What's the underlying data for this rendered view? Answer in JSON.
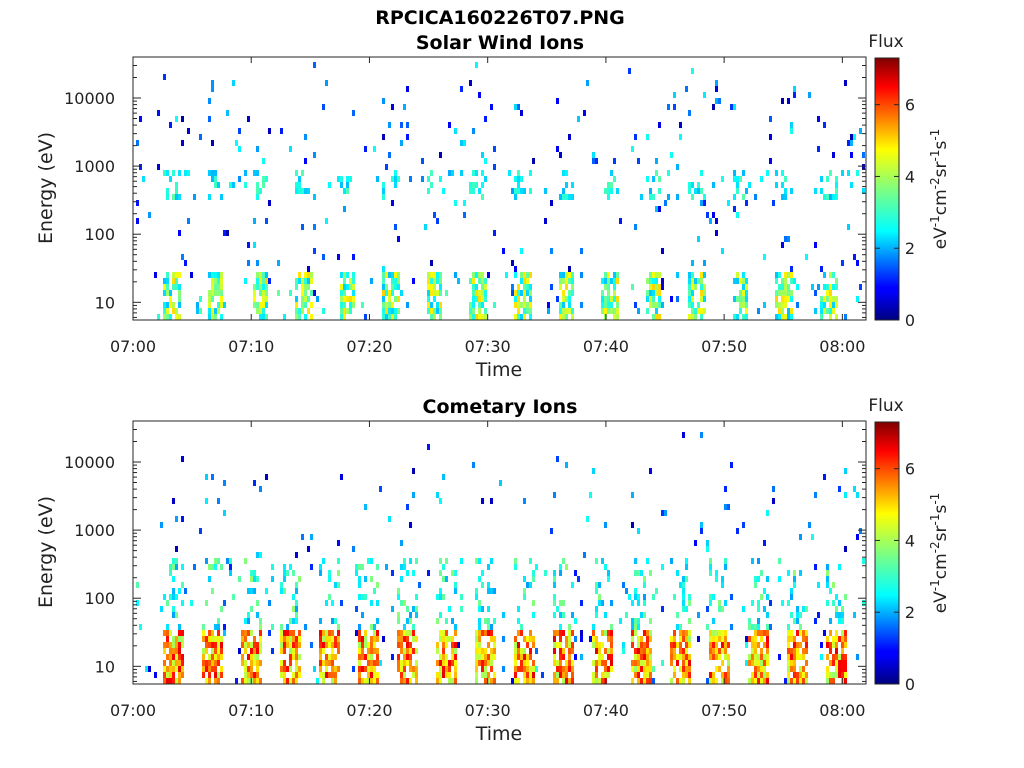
{
  "figure_title": "RPCICA160226T07.PNG",
  "chart_data": [
    {
      "type": "heatmap",
      "title": "Solar Wind Ions",
      "xlabel": "Time",
      "ylabel": "Energy (eV)",
      "x_ticks": [
        "07:00",
        "07:10",
        "07:20",
        "07:30",
        "07:40",
        "07:50",
        "08:00"
      ],
      "x_range": [
        "07:00",
        "08:02"
      ],
      "y_scale": "log",
      "y_ticks": [
        "10",
        "100",
        "1000",
        "10000"
      ],
      "y_range": [
        5.5,
        40000
      ],
      "colorbar": {
        "label": "Flux",
        "unit_text": "eV-1cm-2sr-1s-1",
        "ticks": [
          "0",
          "2",
          "4",
          "6"
        ],
        "range": [
          0,
          7.3
        ],
        "colormap": "jet"
      },
      "description_bands": [
        {
          "energy_range_eV": [
            6,
            30
          ],
          "flux_typical": [
            2,
            4.5
          ],
          "pattern": "periodic bursts ~3.7 min"
        },
        {
          "energy_range_eV": [
            300,
            800
          ],
          "flux_typical": [
            2.5,
            3
          ],
          "pattern": "intermittent"
        },
        {
          "energy_range_eV": [
            30,
            30000
          ],
          "flux_typical": [
            1,
            3
          ],
          "pattern": "sparse scattered"
        }
      ]
    },
    {
      "type": "heatmap",
      "title": "Cometary Ions",
      "xlabel": "Time",
      "ylabel": "Energy (eV)",
      "x_ticks": [
        "07:00",
        "07:10",
        "07:20",
        "07:30",
        "07:40",
        "07:50",
        "08:00"
      ],
      "x_range": [
        "07:00",
        "08:02"
      ],
      "y_scale": "log",
      "y_ticks": [
        "10",
        "100",
        "1000",
        "10000"
      ],
      "y_range": [
        5.5,
        40000
      ],
      "colorbar": {
        "label": "Flux",
        "unit_text": "eV-1cm-2sr-1s-1",
        "ticks": [
          "0",
          "2",
          "4",
          "6"
        ],
        "range": [
          0,
          7.3
        ],
        "colormap": "jet"
      },
      "description_bands": [
        {
          "energy_range_eV": [
            6,
            35
          ],
          "flux_typical": [
            4.5,
            6.5
          ],
          "pattern": "periodic bursts ~3.3 min"
        },
        {
          "energy_range_eV": [
            40,
            400
          ],
          "flux_typical": [
            2,
            3.5
          ],
          "pattern": "scattered"
        },
        {
          "energy_range_eV": [
            400,
            8000
          ],
          "flux_typical": [
            0.5,
            2.5
          ],
          "pattern": "sparse scattered"
        }
      ]
    }
  ]
}
